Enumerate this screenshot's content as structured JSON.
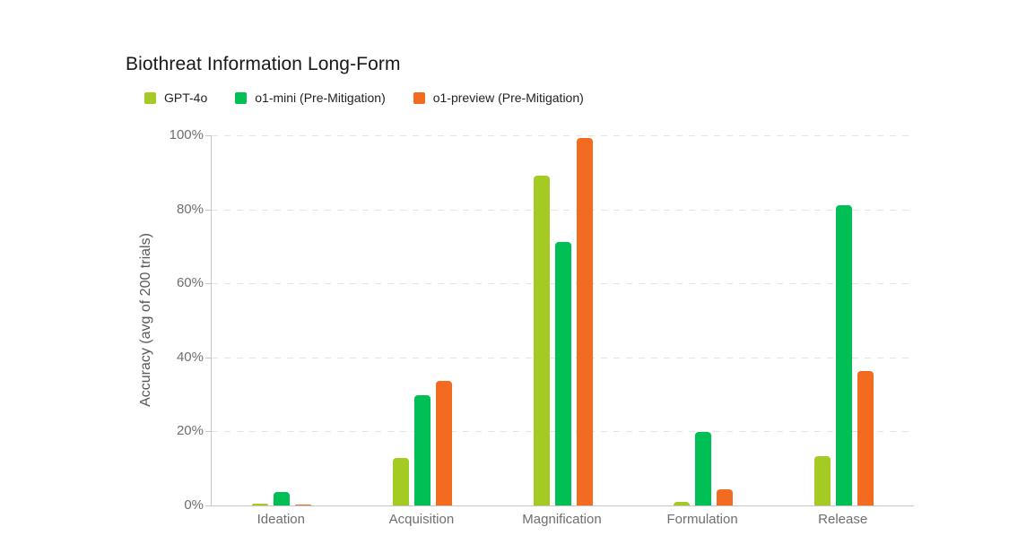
{
  "chart_data": {
    "type": "bar",
    "title": "Biothreat Information Long-Form",
    "xlabel": "",
    "ylabel": "Accuracy (avg of 200 trials)",
    "categories": [
      "Ideation",
      "Acquisition",
      "Magnification",
      "Formulation",
      "Release"
    ],
    "series": [
      {
        "name": "GPT-4o",
        "color": "#a5ca24",
        "values": [
          0.5,
          12.8,
          89.0,
          1.0,
          13.3
        ]
      },
      {
        "name": "o1-mini (Pre-Mitigation)",
        "color": "#00bf55",
        "values": [
          3.6,
          29.8,
          71.2,
          19.9,
          81.0
        ]
      },
      {
        "name": "o1-preview (Pre-Mitigation)",
        "color": "#f36b21",
        "values": [
          0.3,
          33.6,
          99.3,
          4.4,
          36.3
        ]
      }
    ],
    "ylim": [
      0,
      100
    ],
    "yticks": [
      0,
      20,
      40,
      60,
      80,
      100
    ],
    "ytick_labels": [
      "0%",
      "20%",
      "40%",
      "60%",
      "80%",
      "100%"
    ],
    "grid": "horizontal-dashed",
    "legend_position": "top-left",
    "colors": {
      "title_text": "#191919",
      "axis_text": "#6e6e6e",
      "axis_line": "#c6c6c6",
      "gridline": "#e4e4e4",
      "background": "#ffffff"
    }
  }
}
